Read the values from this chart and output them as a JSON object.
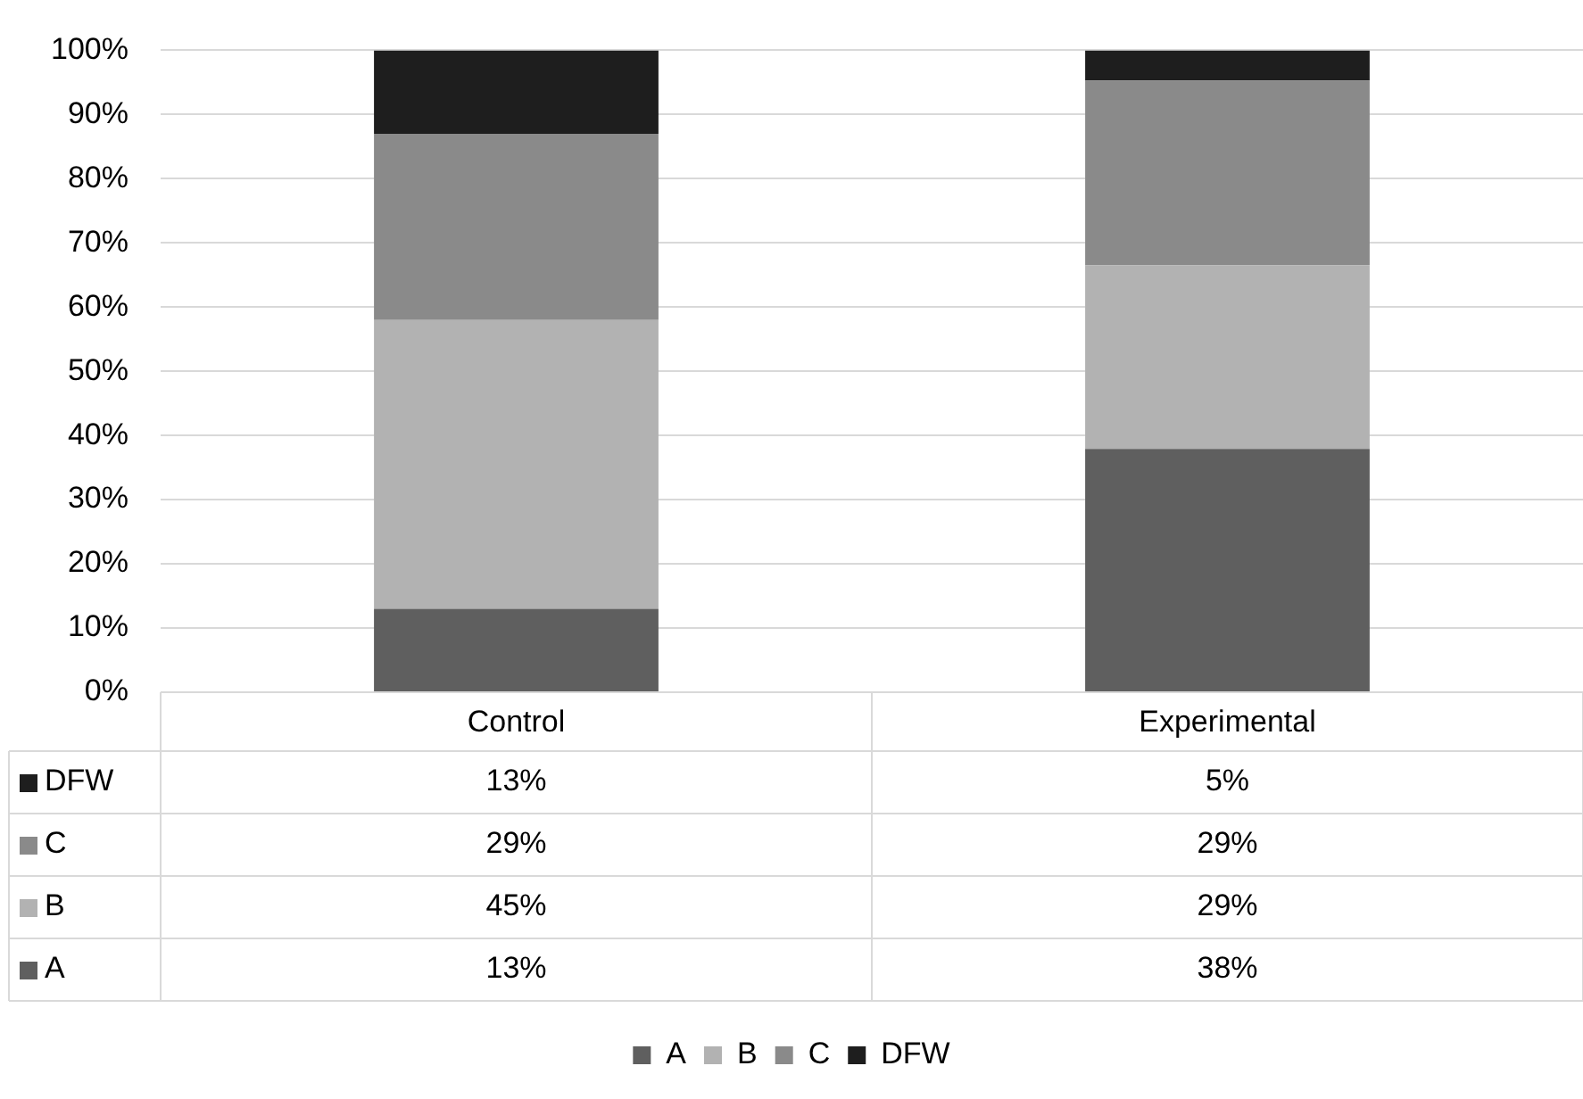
{
  "chart_data": {
    "type": "bar",
    "stacked": true,
    "categories": [
      "Control",
      "Experimental"
    ],
    "series": [
      {
        "name": "A",
        "color": "#5f5f5f",
        "values": [
          13,
          37.9
        ],
        "value_labels": [
          "13%",
          "38%"
        ]
      },
      {
        "name": "B",
        "color": "#b2b2b2",
        "values": [
          45,
          28.6
        ],
        "value_labels": [
          "45%",
          "29%"
        ]
      },
      {
        "name": "C",
        "color": "#8a8a8a",
        "values": [
          29,
          28.8
        ],
        "value_labels": [
          "29%",
          "29%"
        ]
      },
      {
        "name": "DFW",
        "color": "#1e1e1e",
        "values": [
          13,
          4.7
        ],
        "value_labels": [
          "13%",
          "5%"
        ]
      }
    ],
    "ylim": [
      0,
      100
    ],
    "yticks": [
      {
        "value": 0,
        "label": "0%"
      },
      {
        "value": 10,
        "label": "10%"
      },
      {
        "value": 20,
        "label": "20%"
      },
      {
        "value": 30,
        "label": "30%"
      },
      {
        "value": 40,
        "label": "40%"
      },
      {
        "value": 50,
        "label": "50%"
      },
      {
        "value": 60,
        "label": "60%"
      },
      {
        "value": 70,
        "label": "70%"
      },
      {
        "value": 80,
        "label": "80%"
      },
      {
        "value": 90,
        "label": "90%"
      },
      {
        "value": 100,
        "label": "100%"
      }
    ],
    "grid": "y",
    "legend": "bottom"
  }
}
